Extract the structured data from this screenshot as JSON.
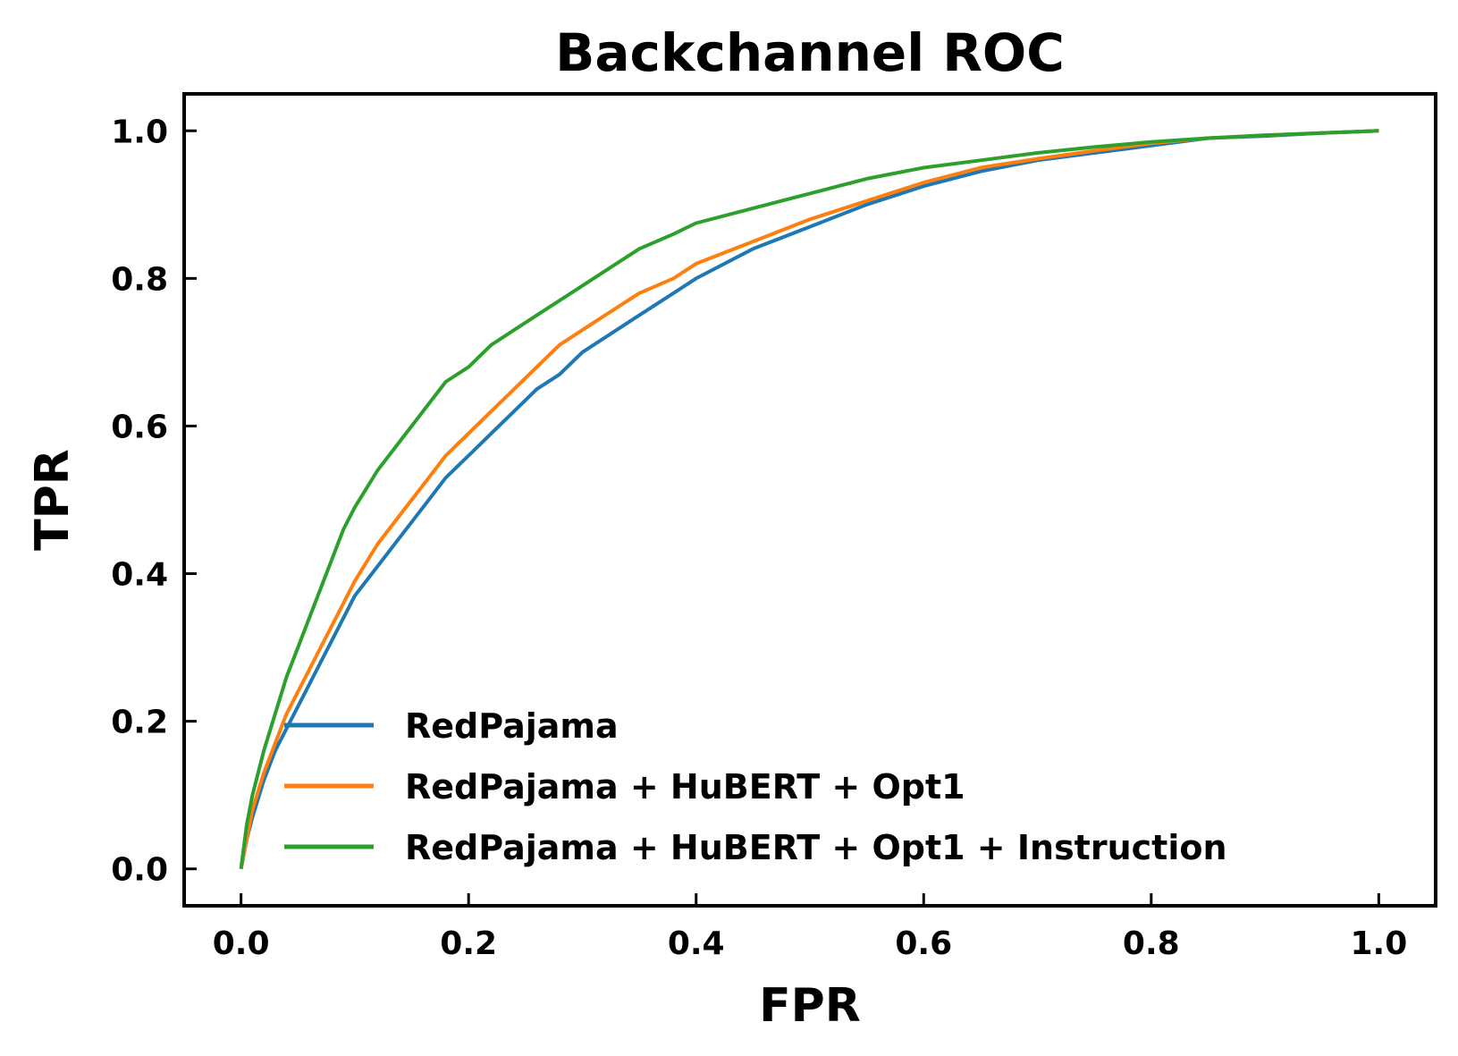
{
  "chart_data": {
    "type": "line",
    "title": "Backchannel ROC",
    "xlabel": "FPR",
    "ylabel": "TPR",
    "xlim": [
      -0.05,
      1.05
    ],
    "ylim": [
      -0.05,
      1.05
    ],
    "xticks": [
      0.0,
      0.2,
      0.4,
      0.6,
      0.8,
      1.0
    ],
    "yticks": [
      0.0,
      0.2,
      0.4,
      0.6,
      0.8,
      1.0
    ],
    "xtick_labels": [
      "0.0",
      "0.2",
      "0.4",
      "0.6",
      "0.8",
      "1.0"
    ],
    "ytick_labels": [
      "0.0",
      "0.2",
      "0.4",
      "0.6",
      "0.8",
      "1.0"
    ],
    "grid": false,
    "legend_position": "bottom-right",
    "series": [
      {
        "name": "RedPajama",
        "color": "#1f77b4",
        "x": [
          0.0,
          0.005,
          0.01,
          0.02,
          0.03,
          0.04,
          0.05,
          0.06,
          0.07,
          0.08,
          0.09,
          0.1,
          0.12,
          0.14,
          0.16,
          0.18,
          0.2,
          0.22,
          0.24,
          0.26,
          0.28,
          0.3,
          0.32,
          0.35,
          0.38,
          0.4,
          0.45,
          0.5,
          0.55,
          0.6,
          0.65,
          0.7,
          0.75,
          0.8,
          0.85,
          0.9,
          0.95,
          1.0
        ],
        "y": [
          0.0,
          0.04,
          0.07,
          0.12,
          0.16,
          0.19,
          0.22,
          0.25,
          0.28,
          0.31,
          0.34,
          0.37,
          0.41,
          0.45,
          0.49,
          0.53,
          0.56,
          0.59,
          0.62,
          0.65,
          0.67,
          0.7,
          0.72,
          0.75,
          0.78,
          0.8,
          0.84,
          0.87,
          0.9,
          0.925,
          0.945,
          0.96,
          0.97,
          0.98,
          0.99,
          0.993,
          0.997,
          1.0
        ]
      },
      {
        "name": "RedPajama + HuBERT + Opt1",
        "color": "#ff7f0e",
        "x": [
          0.0,
          0.005,
          0.01,
          0.02,
          0.03,
          0.04,
          0.05,
          0.06,
          0.07,
          0.08,
          0.09,
          0.1,
          0.12,
          0.14,
          0.16,
          0.18,
          0.2,
          0.22,
          0.24,
          0.26,
          0.28,
          0.3,
          0.32,
          0.35,
          0.38,
          0.4,
          0.45,
          0.5,
          0.55,
          0.6,
          0.65,
          0.7,
          0.75,
          0.8,
          0.85,
          0.9,
          0.95,
          1.0
        ],
        "y": [
          0.0,
          0.04,
          0.08,
          0.13,
          0.17,
          0.21,
          0.24,
          0.27,
          0.3,
          0.33,
          0.36,
          0.39,
          0.44,
          0.48,
          0.52,
          0.56,
          0.59,
          0.62,
          0.65,
          0.68,
          0.71,
          0.73,
          0.75,
          0.78,
          0.8,
          0.82,
          0.85,
          0.88,
          0.905,
          0.93,
          0.95,
          0.962,
          0.973,
          0.983,
          0.99,
          0.994,
          0.997,
          1.0
        ]
      },
      {
        "name": "RedPajama + HuBERT + Opt1 + Instruction",
        "color": "#2ca02c",
        "x": [
          0.0,
          0.005,
          0.01,
          0.02,
          0.03,
          0.04,
          0.05,
          0.06,
          0.07,
          0.08,
          0.09,
          0.1,
          0.12,
          0.14,
          0.16,
          0.18,
          0.2,
          0.22,
          0.24,
          0.26,
          0.28,
          0.3,
          0.32,
          0.35,
          0.38,
          0.4,
          0.45,
          0.5,
          0.55,
          0.6,
          0.65,
          0.7,
          0.75,
          0.8,
          0.85,
          0.9,
          0.95,
          1.0
        ],
        "y": [
          0.0,
          0.06,
          0.1,
          0.16,
          0.21,
          0.26,
          0.3,
          0.34,
          0.38,
          0.42,
          0.46,
          0.49,
          0.54,
          0.58,
          0.62,
          0.66,
          0.68,
          0.71,
          0.73,
          0.75,
          0.77,
          0.79,
          0.81,
          0.84,
          0.86,
          0.875,
          0.895,
          0.915,
          0.935,
          0.95,
          0.96,
          0.97,
          0.978,
          0.985,
          0.99,
          0.994,
          0.997,
          1.0
        ]
      }
    ]
  }
}
